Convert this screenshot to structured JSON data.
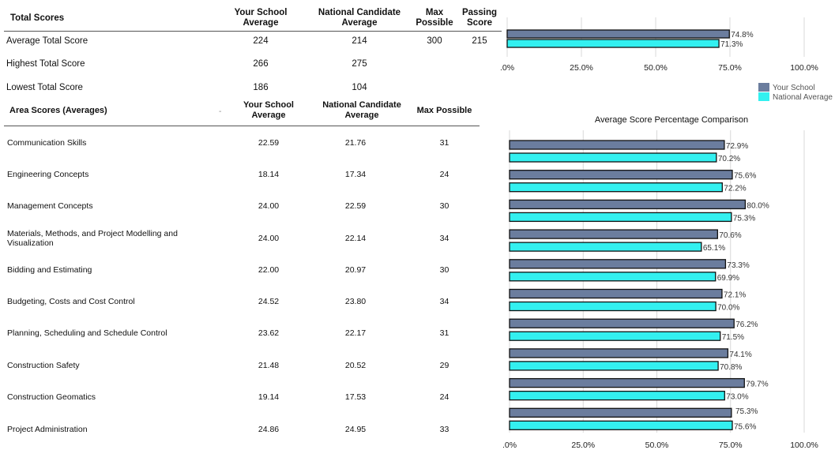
{
  "total_table": {
    "headers": [
      "Total Scores",
      "Your School Average",
      "National Candidate Average",
      "Max Possible",
      "Passing Score"
    ],
    "header_lines": {
      "school": [
        "Your School",
        "Average"
      ],
      "national": [
        "National Candidate",
        "Average"
      ],
      "max": [
        "Max",
        "Possible"
      ],
      "passing": [
        "Passing",
        "Score"
      ]
    },
    "rows": [
      {
        "label": "Average Total Score",
        "school": "224",
        "national": "214",
        "max": "300",
        "passing": "215"
      },
      {
        "label": "Highest Total Score",
        "school": "266",
        "national": "275",
        "max": "",
        "passing": ""
      },
      {
        "label": "Lowest Total Score",
        "school": "186",
        "national": "104",
        "max": "",
        "passing": ""
      }
    ]
  },
  "area_table": {
    "title": "Area Scores (Averages)",
    "header_lines": {
      "school": [
        "Your School",
        "Average"
      ],
      "national": [
        "National Candidate",
        "Average"
      ],
      "max": [
        "Max Possible"
      ]
    },
    "rows": [
      {
        "label": [
          "Communication Skills"
        ],
        "school": "22.59",
        "national": "21.76",
        "max": "31"
      },
      {
        "label": [
          "Engineering Concepts"
        ],
        "school": "18.14",
        "national": "17.34",
        "max": "24"
      },
      {
        "label": [
          "Management Concepts"
        ],
        "school": "24.00",
        "national": "22.59",
        "max": "30"
      },
      {
        "label": [
          "Materials, Methods, and Project Modelling and",
          "Visualization"
        ],
        "school": "24.00",
        "national": "22.14",
        "max": "34"
      },
      {
        "label": [
          "Bidding and Estimating"
        ],
        "school": "22.00",
        "national": "20.97",
        "max": "30"
      },
      {
        "label": [
          "Budgeting, Costs and Cost Control"
        ],
        "school": "24.52",
        "national": "23.80",
        "max": "34"
      },
      {
        "label": [
          "Planning, Scheduling and Schedule Control"
        ],
        "school": "23.62",
        "national": "22.17",
        "max": "31"
      },
      {
        "label": [
          "Construction Safety"
        ],
        "school": "21.48",
        "national": "20.52",
        "max": "29"
      },
      {
        "label": [
          "Construction Geomatics"
        ],
        "school": "19.14",
        "national": "17.53",
        "max": "24"
      },
      {
        "label": [
          "Project Administration"
        ],
        "school": "24.86",
        "national": "24.95",
        "max": "33"
      }
    ]
  },
  "chart_data": [
    {
      "type": "bar",
      "orientation": "horizontal",
      "title": "",
      "categories": [
        "Average Total Score"
      ],
      "series": [
        {
          "name": "Your School",
          "values": [
            74.8
          ],
          "labels": [
            "74.8%"
          ]
        },
        {
          "name": "National Average",
          "values": [
            71.3
          ],
          "labels": [
            "71.3%"
          ]
        }
      ],
      "xlim": [
        0,
        100
      ],
      "ticks": [
        0,
        25,
        50,
        75,
        100
      ],
      "tick_labels": [
        ".0%",
        "25.0%",
        "50.0%",
        "75.0%",
        "100.0%"
      ],
      "grid": true,
      "colors": {
        "school": "#6b7d9e",
        "national": "#33f0f0"
      }
    },
    {
      "type": "bar",
      "orientation": "horizontal",
      "title": "Average Score Percentage Comparison",
      "categories": [
        "Communication Skills",
        "Engineering Concepts",
        "Management Concepts",
        "Materials, Methods, and Project Modelling and Visualization",
        "Bidding and Estimating",
        "Budgeting, Costs and Cost Control",
        "Planning, Scheduling and Schedule Control",
        "Construction Safety",
        "Construction Geomatics",
        "Project Administration"
      ],
      "series": [
        {
          "name": "Your School",
          "values": [
            72.9,
            75.6,
            80.0,
            70.6,
            73.3,
            72.1,
            76.2,
            74.1,
            79.7,
            75.3
          ],
          "labels": [
            "72.9%",
            "75.6%",
            "80.0%",
            "70.6%",
            "73.3%",
            "72.1%",
            "76.2%",
            "74.1%",
            "79.7%",
            ""
          ]
        },
        {
          "name": "National Average",
          "values": [
            70.2,
            72.2,
            75.3,
            65.1,
            69.9,
            70.0,
            71.5,
            70.8,
            73.0,
            75.6
          ],
          "labels": [
            "70.2%",
            "72.2%",
            "75.3%",
            "65.1%",
            "69.9%",
            "70.0%",
            "71.5%",
            "70.8%",
            "73.0%",
            "75.6%"
          ]
        }
      ],
      "top_label": "75.3%",
      "xlim": [
        0,
        100
      ],
      "ticks": [
        0,
        25,
        50,
        75,
        100
      ],
      "tick_labels": [
        ".0%",
        "25.0%",
        "50.0%",
        "75.0%",
        "100.0%"
      ],
      "grid": true,
      "colors": {
        "school": "#6b7d9e",
        "national": "#33f0f0"
      }
    }
  ],
  "legend": {
    "placement": "right",
    "items": [
      {
        "name": "Your School",
        "color": "#6b7d9e"
      },
      {
        "name": "National Average",
        "color": "#33f0f0"
      }
    ]
  },
  "separator_dash": "-"
}
